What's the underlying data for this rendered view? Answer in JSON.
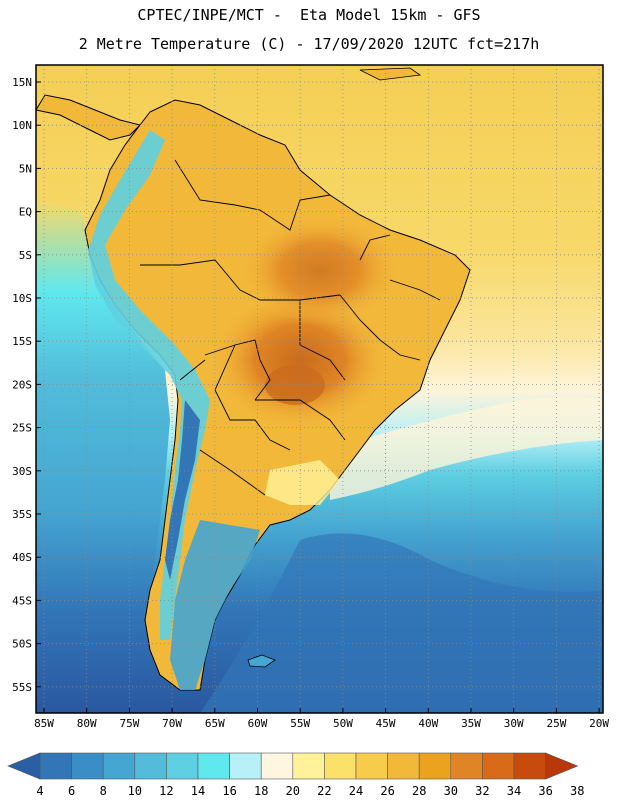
{
  "title_line1": "CPTEC/INPE/MCT -  Eta Model 15km - GFS",
  "title_line2": "2 Metre Temperature (C) - 17/09/2020 12UTC fct=217h",
  "lat_labels": [
    "15N",
    "10N",
    "5N",
    "EQ",
    "5S",
    "10S",
    "15S",
    "20S",
    "25S",
    "30S",
    "35S",
    "40S",
    "45S",
    "50S",
    "55S"
  ],
  "lon_labels": [
    "85W",
    "80W",
    "75W",
    "70W",
    "65W",
    "60W",
    "55W",
    "50W",
    "45W",
    "40W",
    "35W",
    "30W",
    "25W",
    "20W"
  ],
  "colorbar": {
    "labels": [
      "4",
      "6",
      "8",
      "10",
      "12",
      "14",
      "16",
      "18",
      "20",
      "22",
      "24",
      "26",
      "28",
      "30",
      "32",
      "34",
      "36",
      "38"
    ],
    "colors": [
      "#2a5fa6",
      "#3276b8",
      "#3a8ec5",
      "#45a6d2",
      "#52bcda",
      "#5ed0e2",
      "#5fe8ee",
      "#b8f0f7",
      "#fff6e0",
      "#fff29a",
      "#fbe06a",
      "#f7cc4a",
      "#f2b83a",
      "#eba21f",
      "#e08525",
      "#d96a1a",
      "#c84a0d",
      "#b8380a"
    ]
  },
  "map_colors": {
    "ocean_north": "#f5cf55",
    "ocean_south": "#2e5fa3",
    "ocean_deep": "#2a58a0",
    "land_warm": "#f2b83a",
    "land_hot": "#e08525",
    "land_hottest": "#c96b1d",
    "andes": "#5ed0e2",
    "coast_cool": "#52bcda",
    "borders": "#000000"
  }
}
